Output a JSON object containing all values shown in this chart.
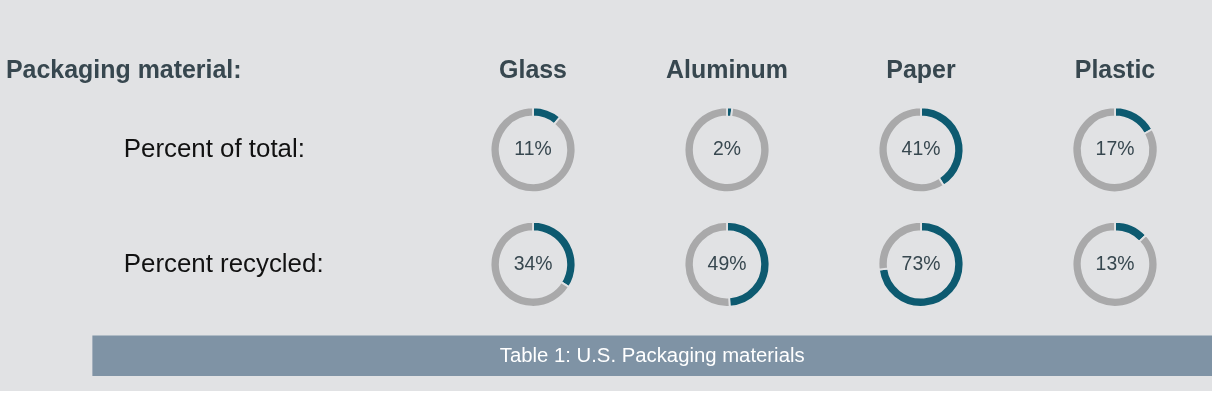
{
  "chart_data": [
    {
      "type": "other",
      "title": "Packaging material:",
      "annotations": [
        "Table 1: U.S. Packaging materials"
      ]
    },
    {
      "type": "donut",
      "title": "Glass",
      "ylabel": "Percent of total:",
      "categories": [
        null,
        null
      ],
      "values": [
        11,
        89
      ],
      "colors": [
        "#0d5a70",
        "#a9a9aa"
      ],
      "value_labels": [
        "11%",
        null
      ]
    },
    {
      "type": "donut",
      "title": "Aluminum",
      "categories": [
        null,
        null
      ],
      "values": [
        2,
        98
      ],
      "colors": [
        "#0d5a70",
        "#a9a9aa"
      ],
      "value_labels": [
        "2%",
        null
      ]
    },
    {
      "type": "donut",
      "title": "Paper",
      "categories": [
        null,
        null
      ],
      "values": [
        41,
        59
      ],
      "colors": [
        "#0d5a70",
        "#a9a9aa"
      ],
      "value_labels": [
        "41%",
        null
      ]
    },
    {
      "type": "donut",
      "title": "Plastic",
      "categories": [
        null,
        null
      ],
      "values": [
        17,
        83
      ],
      "colors": [
        "#0d5a70",
        "#a9a9aa"
      ],
      "value_labels": [
        "17%",
        null
      ]
    },
    {
      "type": "donut",
      "ylabel": "Percent recycled:",
      "categories": [
        null,
        null
      ],
      "values": [
        34,
        66
      ],
      "colors": [
        "#0d5a70",
        "#a9a9aa"
      ],
      "value_labels": [
        "34%",
        null
      ]
    },
    {
      "type": "donut",
      "categories": [
        null,
        null
      ],
      "values": [
        49,
        51
      ],
      "colors": [
        "#0d5a70",
        "#a9a9aa"
      ],
      "value_labels": [
        "49%",
        null
      ]
    },
    {
      "type": "donut",
      "categories": [
        null,
        null
      ],
      "values": [
        73,
        27
      ],
      "colors": [
        "#0d5a70",
        "#a9a9aa"
      ],
      "value_labels": [
        "73%",
        null
      ]
    },
    {
      "type": "donut",
      "categories": [
        null,
        null
      ],
      "values": [
        13,
        87
      ],
      "colors": [
        "#0d5a70",
        "#a9a9aa"
      ],
      "value_labels": [
        "13%",
        null
      ]
    }
  ]
}
